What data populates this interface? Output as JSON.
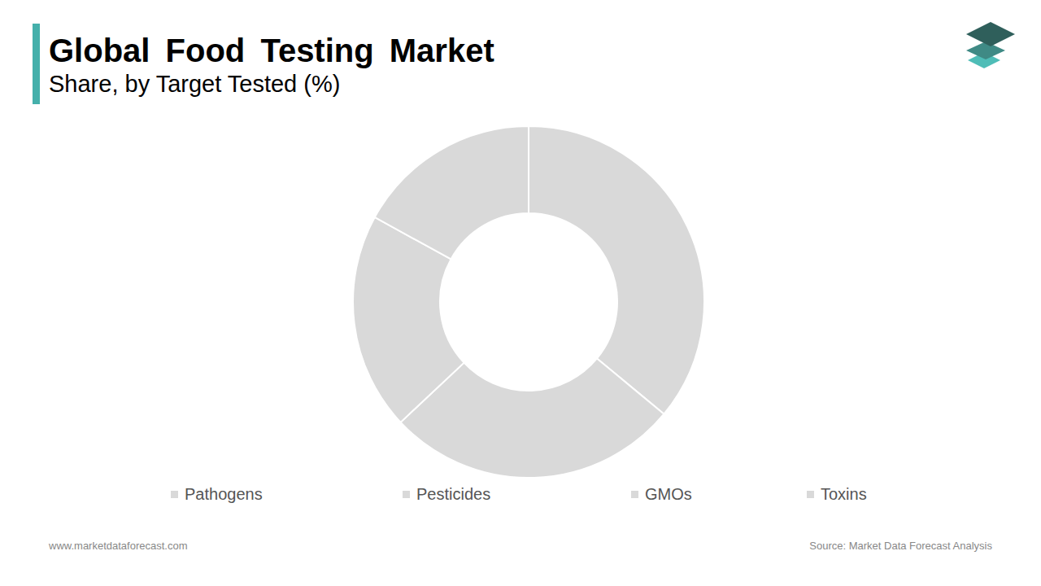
{
  "chart_data": {
    "type": "pie",
    "title": "Global Food Testing Market",
    "subtitle": "Share, by Target Tested (%)",
    "categories": [
      "Pathogens",
      "Pesticides",
      "GMOs",
      "Toxins"
    ],
    "values": [
      36,
      27,
      20,
      17
    ],
    "colors": [
      "#d9d9d9",
      "#d9d9d9",
      "#d9d9d9",
      "#d9d9d9"
    ],
    "annotations": [
      "www.marketdataforecast.com",
      "Source: Market Data Forecast Analysis"
    ]
  }
}
